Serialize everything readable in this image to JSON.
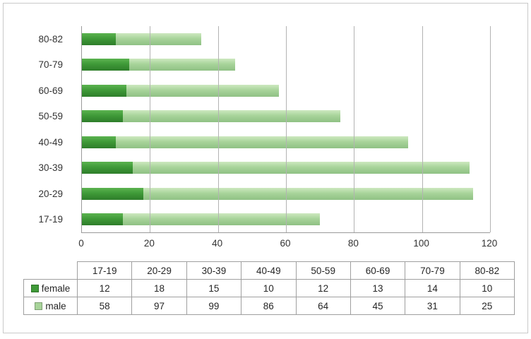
{
  "chart_data": {
    "type": "bar",
    "orientation": "horizontal",
    "stacked": true,
    "title": "",
    "categories": [
      "17-19",
      "20-29",
      "30-39",
      "40-49",
      "50-59",
      "60-69",
      "70-79",
      "80-82"
    ],
    "series": [
      {
        "name": "female",
        "color": "#3f9a38",
        "values": [
          12,
          18,
          15,
          10,
          12,
          13,
          14,
          10
        ]
      },
      {
        "name": "male",
        "color": "#a8d49a",
        "values": [
          58,
          97,
          99,
          86,
          64,
          45,
          31,
          25
        ]
      }
    ],
    "xlim": [
      0,
      120
    ],
    "xticks": [
      0,
      20,
      40,
      60,
      80,
      100,
      120
    ],
    "grid": "vertical",
    "legend_position": "table-below"
  },
  "table": {
    "header": [
      "",
      "17-19",
      "20-29",
      "30-39",
      "40-49",
      "50-59",
      "60-69",
      "70-79",
      "80-82"
    ],
    "rows": [
      {
        "label": "female",
        "swatch_color": "#3f9a38",
        "values": [
          12,
          18,
          15,
          10,
          12,
          13,
          14,
          10
        ]
      },
      {
        "label": "male",
        "swatch_color": "#a8d49a",
        "values": [
          58,
          97,
          99,
          86,
          64,
          45,
          31,
          25
        ]
      }
    ]
  }
}
